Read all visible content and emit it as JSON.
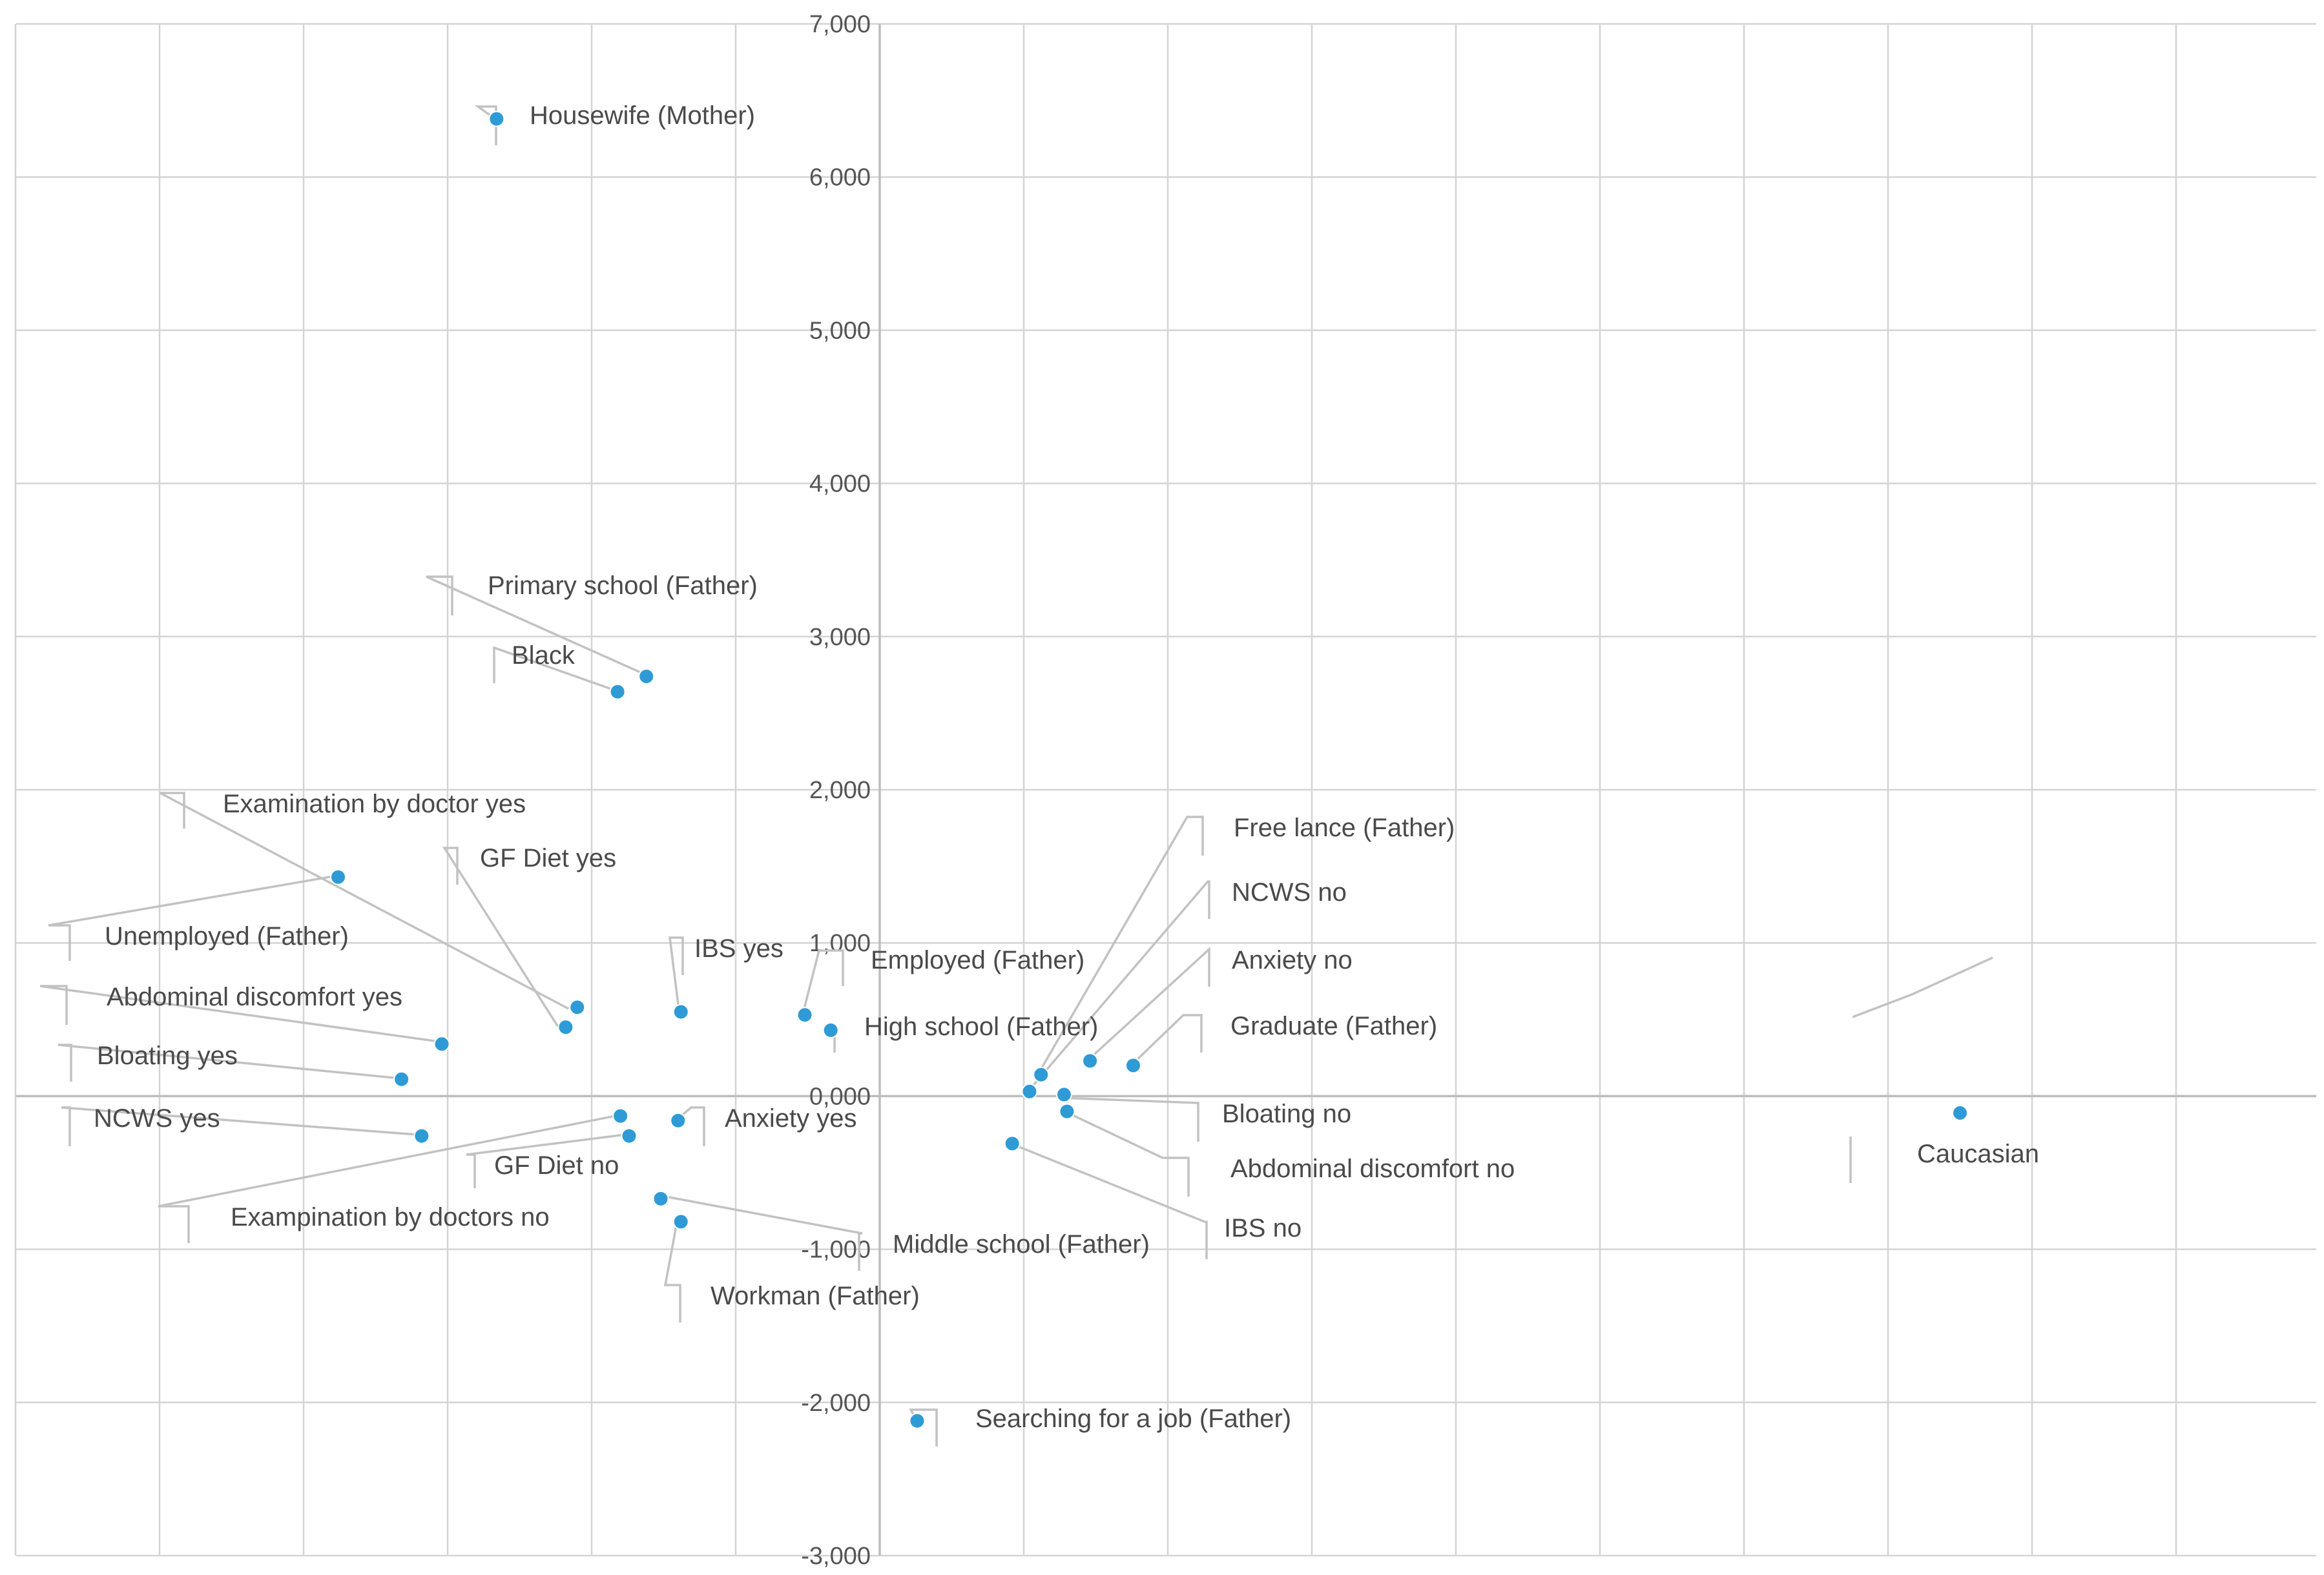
{
  "chart_data": {
    "type": "scatter",
    "title": "",
    "xlabel": "",
    "ylabel": "",
    "xlim": [
      -3.0,
      5.0
    ],
    "ylim": [
      -3000,
      7000
    ],
    "grid": true,
    "y_tick_labels": [
      "7,000",
      "6,000",
      "5,000",
      "4,000",
      "3,000",
      "2,000",
      "1,000",
      "0,000",
      "-1,000",
      "-2,000",
      "-3,000"
    ],
    "points": [
      {
        "label": "Housewife (Mother)",
        "x": -1.33,
        "y": 6380
      },
      {
        "label": "Primary school (Father)",
        "x": -0.81,
        "y": 2740
      },
      {
        "label": "Black",
        "x": -0.91,
        "y": 2640
      },
      {
        "label": "Examination by doctor yes",
        "x": -1.05,
        "y": 580
      },
      {
        "label": "GF Diet yes",
        "x": -1.09,
        "y": 450
      },
      {
        "label": "Unemployed (Father)",
        "x": -1.88,
        "y": 1430
      },
      {
        "label": "IBS yes",
        "x": -0.69,
        "y": 550
      },
      {
        "label": "Employed (Father)",
        "x": -0.26,
        "y": 530
      },
      {
        "label": "High school (Father)",
        "x": -0.17,
        "y": 430
      },
      {
        "label": "Abdominal discomfort yes",
        "x": -1.52,
        "y": 340
      },
      {
        "label": "Bloating yes",
        "x": -1.66,
        "y": 110
      },
      {
        "label": "NCWS yes",
        "x": -1.59,
        "y": -260
      },
      {
        "label": "GF Diet no",
        "x": -0.87,
        "y": -260
      },
      {
        "label": "Exampination by doctors no",
        "x": -0.9,
        "y": -130
      },
      {
        "label": "Anxiety yes",
        "x": -0.7,
        "y": -160
      },
      {
        "label": "Middle school (Father)",
        "x": -0.76,
        "y": -670
      },
      {
        "label": "Workman (Father)",
        "x": -0.69,
        "y": -820
      },
      {
        "label": "Searching for a job (Father)",
        "x": 0.13,
        "y": -2120
      },
      {
        "label": "Free lance (Father)",
        "x": 0.56,
        "y": 140
      },
      {
        "label": "NCWS no",
        "x": 0.52,
        "y": 30
      },
      {
        "label": "Anxiety no",
        "x": 0.73,
        "y": 230
      },
      {
        "label": "Graduate (Father)",
        "x": 0.88,
        "y": 200
      },
      {
        "label": "Bloating no",
        "x": 0.64,
        "y": 10
      },
      {
        "label": "Abdominal discomfort  no",
        "x": 0.65,
        "y": -100
      },
      {
        "label": "IBS no",
        "x": 0.46,
        "y": -310
      },
      {
        "label": "Caucasian",
        "x": 3.75,
        "y": -110
      }
    ]
  }
}
